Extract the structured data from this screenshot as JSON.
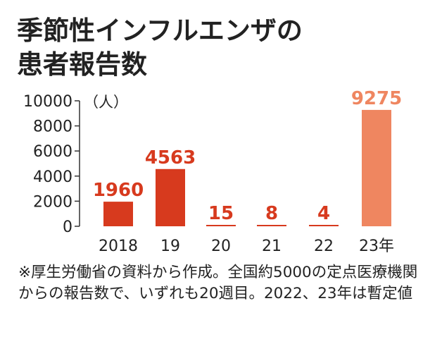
{
  "title_lines": [
    "季節性インフルエンザの",
    "患者報告数"
  ],
  "note": "※厚生労働省の資料から作成。全国約5000の定点医療機関からの報告数で、いずれも20週目。2022、23年は暫定値",
  "colors": {
    "bar": "#d73a1e",
    "bar_latest": "#ef8660",
    "label": "#d73a1e",
    "label_latest": "#ef8660",
    "axis": "#333333"
  },
  "chart_data": {
    "type": "bar",
    "title": "季節性インフルエンザの患者報告数",
    "unit": "（人）",
    "categories": [
      "2018",
      "19",
      "20",
      "21",
      "22",
      "23年"
    ],
    "values": [
      1960,
      4563,
      15,
      8,
      4,
      9275
    ],
    "data_labels": [
      "1960",
      "4563",
      "15",
      "8",
      "4",
      "9275"
    ],
    "y_ticks": [
      "0",
      "2000",
      "4000",
      "6000",
      "8000",
      "10000"
    ],
    "ylim": [
      0,
      10000
    ],
    "grid": false
  }
}
